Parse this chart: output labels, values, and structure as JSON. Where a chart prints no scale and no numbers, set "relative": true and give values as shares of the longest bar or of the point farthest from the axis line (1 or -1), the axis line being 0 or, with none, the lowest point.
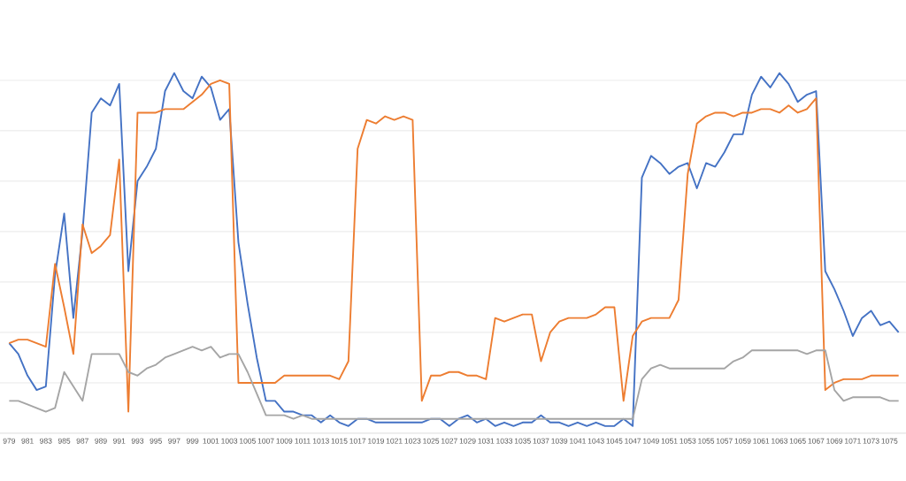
{
  "chart_data": {
    "type": "line",
    "relative": true,
    "grid": "y",
    "categories": [
      "979",
      null,
      "981",
      null,
      "983",
      null,
      "985",
      null,
      "987",
      null,
      "989",
      null,
      "991",
      null,
      "993",
      null,
      "995",
      null,
      "997",
      null,
      "999",
      null,
      "1001",
      null,
      "1003",
      null,
      "1005",
      null,
      "1007",
      null,
      "1009",
      null,
      "1011",
      null,
      "1013",
      null,
      "1015",
      null,
      "1017",
      null,
      "1019",
      null,
      "1021",
      null,
      "1023",
      null,
      "1025",
      null,
      "1027",
      null,
      "1029",
      null,
      "1031",
      null,
      "1033",
      null,
      "1035",
      null,
      "1037",
      null,
      "1039",
      null,
      "1041",
      null,
      "1043",
      null,
      "1045",
      null,
      "1047",
      null,
      "1049",
      null,
      "1051",
      null,
      "1053",
      null,
      "1055",
      null,
      "1057",
      null,
      "1059",
      null,
      "1061",
      null,
      "1063",
      null,
      "1065",
      null,
      "1067",
      null,
      "1069",
      null,
      "1071",
      null,
      "1073",
      null,
      "1075",
      null
    ],
    "series": [
      {
        "color": "#4472c4",
        "values": [
          0.25,
          0.22,
          0.16,
          0.12,
          0.13,
          0.44,
          0.61,
          0.32,
          0.56,
          0.89,
          0.93,
          0.91,
          0.97,
          0.45,
          0.7,
          0.74,
          0.79,
          0.95,
          1.0,
          0.95,
          0.93,
          0.99,
          0.96,
          0.87,
          0.9,
          0.53,
          0.36,
          0.21,
          0.09,
          0.09,
          0.06,
          0.06,
          0.05,
          0.05,
          0.03,
          0.05,
          0.03,
          0.02,
          0.04,
          0.04,
          0.03,
          0.03,
          0.03,
          0.03,
          0.03,
          0.03,
          0.04,
          0.04,
          0.02,
          0.04,
          0.05,
          0.03,
          0.04,
          0.02,
          0.03,
          0.02,
          0.03,
          0.03,
          0.05,
          0.03,
          0.03,
          0.02,
          0.03,
          0.02,
          0.03,
          0.02,
          0.02,
          0.04,
          0.02,
          0.71,
          0.77,
          0.75,
          0.72,
          0.74,
          0.75,
          0.68,
          0.75,
          0.74,
          0.78,
          0.83,
          0.83,
          0.94,
          0.99,
          0.96,
          1.0,
          0.97,
          0.92,
          0.94,
          0.95,
          0.45,
          0.4,
          0.34,
          0.27,
          0.32,
          0.34,
          0.3,
          0.31,
          0.28
        ]
      },
      {
        "color": "#ed7d31",
        "values": [
          0.25,
          0.26,
          0.26,
          0.25,
          0.24,
          0.47,
          0.35,
          0.22,
          0.58,
          0.5,
          0.52,
          0.55,
          0.76,
          0.06,
          0.89,
          0.89,
          0.89,
          0.9,
          0.9,
          0.9,
          0.92,
          0.94,
          0.97,
          0.98,
          0.97,
          0.14,
          0.14,
          0.14,
          0.14,
          0.14,
          0.16,
          0.16,
          0.16,
          0.16,
          0.16,
          0.16,
          0.15,
          0.2,
          0.79,
          0.87,
          0.86,
          0.88,
          0.87,
          0.88,
          0.87,
          0.09,
          0.16,
          0.16,
          0.17,
          0.17,
          0.16,
          0.16,
          0.15,
          0.32,
          0.31,
          0.32,
          0.33,
          0.33,
          0.2,
          0.28,
          0.31,
          0.32,
          0.32,
          0.32,
          0.33,
          0.35,
          0.35,
          0.09,
          0.27,
          0.31,
          0.32,
          0.32,
          0.32,
          0.37,
          0.72,
          0.86,
          0.88,
          0.89,
          0.89,
          0.88,
          0.89,
          0.89,
          0.9,
          0.9,
          0.89,
          0.91,
          0.89,
          0.9,
          0.93,
          0.12,
          0.14,
          0.15,
          0.15,
          0.15,
          0.16,
          0.16,
          0.16,
          0.16
        ]
      },
      {
        "color": "#a5a5a5",
        "values": [
          0.09,
          0.09,
          0.08,
          0.07,
          0.06,
          0.07,
          0.17,
          0.13,
          0.09,
          0.22,
          0.22,
          0.22,
          0.22,
          0.17,
          0.16,
          0.18,
          0.19,
          0.21,
          0.22,
          0.23,
          0.24,
          0.23,
          0.24,
          0.21,
          0.22,
          0.22,
          0.17,
          0.11,
          0.05,
          0.05,
          0.05,
          0.04,
          0.05,
          0.04,
          0.04,
          0.04,
          0.04,
          0.04,
          0.04,
          0.04,
          0.04,
          0.04,
          0.04,
          0.04,
          0.04,
          0.04,
          0.04,
          0.04,
          0.04,
          0.04,
          0.04,
          0.04,
          0.04,
          0.04,
          0.04,
          0.04,
          0.04,
          0.04,
          0.04,
          0.04,
          0.04,
          0.04,
          0.04,
          0.04,
          0.04,
          0.04,
          0.04,
          0.04,
          0.04,
          0.15,
          0.18,
          0.19,
          0.18,
          0.18,
          0.18,
          0.18,
          0.18,
          0.18,
          0.18,
          0.2,
          0.21,
          0.23,
          0.23,
          0.23,
          0.23,
          0.23,
          0.23,
          0.22,
          0.23,
          0.23,
          0.12,
          0.09,
          0.1,
          0.1,
          0.1,
          0.1,
          0.09,
          0.09
        ]
      }
    ]
  }
}
